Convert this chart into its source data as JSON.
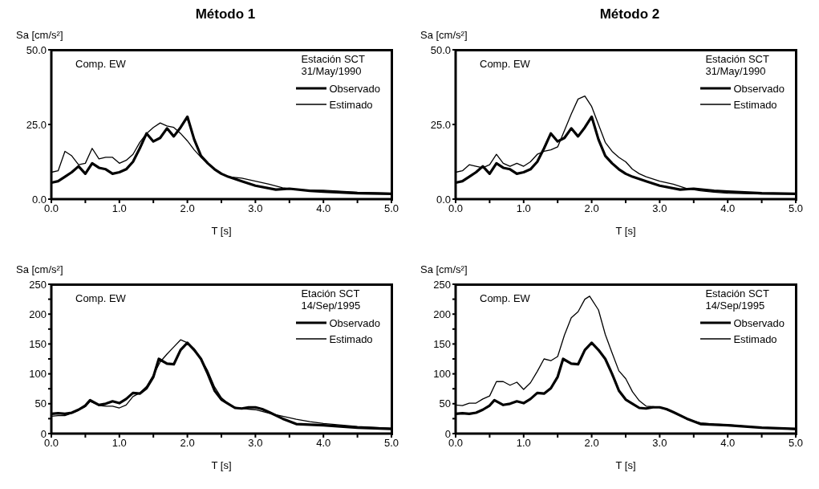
{
  "chart_data": [
    {
      "type": "line",
      "title": "Método 1",
      "ylabel": "Sa [cm/s²]",
      "xlabel": "T [s]",
      "annotations": [
        "Comp. EW",
        "Estación SCT\n31/May/1990"
      ],
      "legend": "top right",
      "grid": false,
      "xlim": [
        0,
        5
      ],
      "xticks": [
        {
          "value": 0,
          "label": "0.0"
        },
        {
          "value": 0.5,
          "label": null
        },
        {
          "value": 1,
          "label": "1.0"
        },
        {
          "value": 1.5,
          "label": null
        },
        {
          "value": 2,
          "label": "2.0"
        },
        {
          "value": 2.5,
          "label": null
        },
        {
          "value": 3,
          "label": "3.0"
        },
        {
          "value": 3.5,
          "label": null
        },
        {
          "value": 4,
          "label": "4.0"
        },
        {
          "value": 4.5,
          "label": null
        },
        {
          "value": 5,
          "label": "5.0"
        }
      ],
      "ylim": [
        0,
        50
      ],
      "yticks": [
        {
          "value": 0,
          "label": "0.0"
        },
        {
          "value": 25,
          "label": "25.0"
        },
        {
          "value": 50,
          "label": "50.0"
        }
      ],
      "series": [
        {
          "name": "Observado",
          "color": "#000000",
          "x": [
            0,
            0.1,
            0.2,
            0.3,
            0.4,
            0.5,
            0.6,
            0.7,
            0.8,
            0.9,
            1.0,
            1.1,
            1.2,
            1.3,
            1.4,
            1.5,
            1.6,
            1.7,
            1.8,
            1.9,
            2.0,
            2.1,
            2.2,
            2.3,
            2.4,
            2.5,
            2.6,
            2.8,
            3.0,
            3.3,
            3.5,
            3.8,
            4.0,
            4.5,
            5.0
          ],
          "values": [
            5.5,
            6,
            7.5,
            9,
            11,
            8.5,
            12,
            10.5,
            10,
            8.5,
            9,
            10,
            12.5,
            17,
            22,
            19.3,
            20.5,
            23.7,
            21,
            24,
            27.6,
            20,
            14.5,
            12,
            10,
            8.5,
            7.5,
            6,
            4.5,
            3.2,
            3.5,
            2.8,
            2.5,
            2,
            1.8
          ]
        },
        {
          "name": "Estimado",
          "color": "#000000",
          "x": [
            0,
            0.1,
            0.2,
            0.3,
            0.4,
            0.5,
            0.6,
            0.7,
            0.8,
            0.9,
            1.0,
            1.1,
            1.2,
            1.3,
            1.4,
            1.5,
            1.6,
            1.7,
            1.8,
            1.9,
            2.0,
            2.1,
            2.2,
            2.3,
            2.4,
            2.5,
            2.6,
            2.8,
            3.0,
            3.2,
            3.4,
            3.6,
            3.8,
            4.0,
            4.5,
            5.0
          ],
          "values": [
            9,
            9.5,
            16,
            14.5,
            11.5,
            12,
            17,
            13.5,
            14,
            14,
            12,
            13,
            15,
            19,
            22,
            24,
            25.5,
            24.5,
            24,
            22,
            19.5,
            16.5,
            14,
            12,
            10,
            8.5,
            7.5,
            7,
            6,
            5,
            3.8,
            3.2,
            3,
            3,
            2.3,
            2
          ]
        }
      ]
    },
    {
      "type": "line",
      "title": "Método 2",
      "ylabel": "Sa [cm/s²]",
      "xlabel": "T [s]",
      "annotations": [
        "Comp. EW",
        "Estación SCT\n31/May/1990"
      ],
      "legend": "top right",
      "grid": false,
      "xlim": [
        0,
        5
      ],
      "xticks": [
        {
          "value": 0,
          "label": "0.0"
        },
        {
          "value": 0.5,
          "label": null
        },
        {
          "value": 1,
          "label": "1.0"
        },
        {
          "value": 1.5,
          "label": null
        },
        {
          "value": 2,
          "label": "2.0"
        },
        {
          "value": 2.5,
          "label": null
        },
        {
          "value": 3,
          "label": "3.0"
        },
        {
          "value": 3.5,
          "label": null
        },
        {
          "value": 4,
          "label": "4.0"
        },
        {
          "value": 4.5,
          "label": null
        },
        {
          "value": 5,
          "label": "5.0"
        }
      ],
      "ylim": [
        0,
        50
      ],
      "yticks": [
        {
          "value": 0,
          "label": "0.0"
        },
        {
          "value": 25,
          "label": "25.0"
        },
        {
          "value": 50,
          "label": "50.0"
        }
      ],
      "series": [
        {
          "name": "Observado",
          "color": "#000000",
          "x": [
            0,
            0.1,
            0.2,
            0.3,
            0.4,
            0.5,
            0.6,
            0.7,
            0.8,
            0.9,
            1.0,
            1.1,
            1.2,
            1.3,
            1.4,
            1.5,
            1.6,
            1.7,
            1.8,
            1.9,
            2.0,
            2.1,
            2.2,
            2.3,
            2.4,
            2.5,
            2.6,
            2.8,
            3.0,
            3.3,
            3.5,
            3.8,
            4.0,
            4.5,
            5.0
          ],
          "values": [
            5.5,
            6,
            7.5,
            9,
            11,
            8.5,
            12,
            10.5,
            10,
            8.5,
            9,
            10,
            12.5,
            17,
            22,
            19.3,
            20.5,
            23.7,
            21,
            24,
            27.6,
            20,
            14.5,
            12,
            10,
            8.5,
            7.5,
            6,
            4.5,
            3.2,
            3.5,
            2.8,
            2.5,
            2,
            1.8
          ]
        },
        {
          "name": "Estimado",
          "color": "#000000",
          "x": [
            0,
            0.1,
            0.2,
            0.3,
            0.4,
            0.5,
            0.6,
            0.7,
            0.8,
            0.9,
            1.0,
            1.1,
            1.2,
            1.3,
            1.4,
            1.5,
            1.6,
            1.7,
            1.8,
            1.9,
            2.0,
            2.1,
            2.2,
            2.3,
            2.4,
            2.5,
            2.6,
            2.7,
            2.8,
            3.0,
            3.2,
            3.4,
            3.6,
            3.8,
            4.0,
            4.5,
            5.0
          ],
          "values": [
            9,
            9.5,
            11.5,
            11,
            10.5,
            11.5,
            15,
            12,
            11,
            12,
            11,
            12.5,
            15,
            16,
            16.5,
            17.5,
            23,
            28.5,
            33.5,
            34.5,
            31,
            25,
            19,
            16,
            14,
            12.5,
            10,
            8.5,
            7.5,
            6,
            5,
            3.5,
            2.8,
            2.3,
            2,
            1.7,
            1.7
          ]
        }
      ]
    },
    {
      "type": "line",
      "ylabel": "Sa [cm/s²]",
      "xlabel": "T [s]",
      "annotations": [
        "Comp. EW",
        "Etación SCT\n14/Sep/1995"
      ],
      "legend": "top right",
      "grid": false,
      "xlim": [
        0,
        5
      ],
      "xticks": [
        {
          "value": 0,
          "label": "0.0"
        },
        {
          "value": 0.5,
          "label": null
        },
        {
          "value": 1,
          "label": "1.0"
        },
        {
          "value": 1.5,
          "label": null
        },
        {
          "value": 2,
          "label": "2.0"
        },
        {
          "value": 2.5,
          "label": null
        },
        {
          "value": 3,
          "label": "3.0"
        },
        {
          "value": 3.5,
          "label": null
        },
        {
          "value": 4,
          "label": "4.0"
        },
        {
          "value": 4.5,
          "label": null
        },
        {
          "value": 5,
          "label": "5.0"
        }
      ],
      "ylim": [
        0,
        250
      ],
      "yticks": [
        0,
        {
          "value": 25,
          "label": null
        },
        50,
        {
          "value": 75,
          "label": null
        },
        100,
        {
          "value": 125,
          "label": null
        },
        150,
        {
          "value": 175,
          "label": null
        },
        200,
        {
          "value": 225,
          "label": null
        },
        250
      ],
      "series": [
        {
          "name": "Observado",
          "color": "#000000",
          "x": [
            0,
            0.1,
            0.2,
            0.3,
            0.4,
            0.5,
            0.57,
            0.7,
            0.8,
            0.9,
            1.0,
            1.1,
            1.2,
            1.3,
            1.4,
            1.5,
            1.58,
            1.7,
            1.8,
            1.9,
            2.0,
            2.1,
            2.2,
            2.3,
            2.4,
            2.5,
            2.6,
            2.7,
            2.8,
            2.9,
            3.0,
            3.1,
            3.2,
            3.4,
            3.6,
            3.8,
            4.0,
            4.5,
            5.0
          ],
          "values": [
            33,
            34,
            33,
            35,
            40,
            47,
            56,
            48,
            50,
            54,
            51,
            58,
            68,
            67,
            76,
            95,
            125,
            117,
            116,
            140,
            152,
            140,
            125,
            100,
            72,
            57,
            50,
            43,
            42,
            44,
            44,
            41,
            36,
            25,
            16,
            15,
            14,
            10,
            8
          ]
        },
        {
          "name": "Estimado",
          "color": "#000000",
          "x": [
            0,
            0.1,
            0.2,
            0.3,
            0.4,
            0.5,
            0.57,
            0.7,
            0.8,
            0.9,
            1.0,
            1.1,
            1.2,
            1.3,
            1.4,
            1.5,
            1.6,
            1.7,
            1.8,
            1.9,
            2.0,
            2.1,
            2.2,
            2.3,
            2.4,
            2.5,
            2.6,
            2.7,
            2.8,
            3.0,
            3.2,
            3.4,
            3.6,
            3.8,
            4.0,
            4.5,
            5.0
          ],
          "values": [
            29,
            30,
            30,
            34,
            39,
            45,
            54,
            47,
            46,
            46,
            43,
            48,
            62,
            68,
            79,
            98,
            120,
            133,
            145,
            157,
            152,
            142,
            125,
            105,
            78,
            60,
            50,
            44,
            42,
            40,
            34,
            29,
            24,
            20,
            17,
            12,
            9
          ]
        }
      ]
    },
    {
      "type": "line",
      "ylabel": "Sa [cm/s²]",
      "xlabel": "T [s]",
      "annotations": [
        "Comp. EW",
        "Estación SCT\n14/Sep/1995"
      ],
      "legend": "top right",
      "grid": false,
      "xlim": [
        0,
        5
      ],
      "xticks": [
        {
          "value": 0,
          "label": "0.0"
        },
        {
          "value": 0.5,
          "label": null
        },
        {
          "value": 1,
          "label": "1.0"
        },
        {
          "value": 1.5,
          "label": null
        },
        {
          "value": 2,
          "label": "2.0"
        },
        {
          "value": 2.5,
          "label": null
        },
        {
          "value": 3,
          "label": "3.0"
        },
        {
          "value": 3.5,
          "label": null
        },
        {
          "value": 4,
          "label": "4.0"
        },
        {
          "value": 4.5,
          "label": null
        },
        {
          "value": 5,
          "label": "5.0"
        }
      ],
      "ylim": [
        0,
        250
      ],
      "yticks": [
        0,
        {
          "value": 25,
          "label": null
        },
        50,
        {
          "value": 75,
          "label": null
        },
        100,
        {
          "value": 125,
          "label": null
        },
        150,
        {
          "value": 175,
          "label": null
        },
        200,
        {
          "value": 225,
          "label": null
        },
        250
      ],
      "series": [
        {
          "name": "Observado",
          "color": "#000000",
          "x": [
            0,
            0.1,
            0.2,
            0.3,
            0.4,
            0.5,
            0.57,
            0.7,
            0.8,
            0.9,
            1.0,
            1.1,
            1.2,
            1.3,
            1.4,
            1.5,
            1.58,
            1.7,
            1.8,
            1.9,
            2.0,
            2.1,
            2.2,
            2.3,
            2.4,
            2.5,
            2.6,
            2.7,
            2.8,
            2.9,
            3.0,
            3.1,
            3.2,
            3.4,
            3.6,
            3.8,
            4.0,
            4.5,
            5.0
          ],
          "values": [
            33,
            34,
            33,
            35,
            40,
            47,
            56,
            48,
            50,
            54,
            51,
            58,
            68,
            67,
            76,
            95,
            125,
            117,
            116,
            140,
            152,
            140,
            125,
            100,
            72,
            57,
            50,
            43,
            42,
            44,
            44,
            41,
            36,
            25,
            16,
            15,
            14,
            10,
            8
          ]
        },
        {
          "name": "Estimado",
          "color": "#000000",
          "x": [
            0,
            0.1,
            0.2,
            0.3,
            0.4,
            0.5,
            0.6,
            0.7,
            0.8,
            0.9,
            1.0,
            1.1,
            1.2,
            1.3,
            1.4,
            1.5,
            1.6,
            1.7,
            1.8,
            1.9,
            1.97,
            2.1,
            2.2,
            2.3,
            2.4,
            2.5,
            2.6,
            2.7,
            2.8,
            2.9,
            3.0,
            3.2,
            3.4,
            3.6,
            3.8,
            4.0,
            4.5,
            5.0
          ],
          "values": [
            48,
            47,
            51,
            51,
            58,
            63,
            87,
            87,
            81,
            86,
            74,
            85,
            104,
            125,
            122,
            129,
            165,
            194,
            204,
            225,
            230,
            207,
            166,
            135,
            105,
            92,
            70,
            55,
            46,
            45,
            44,
            36,
            24,
            18,
            16,
            15,
            10,
            7
          ]
        }
      ]
    }
  ]
}
